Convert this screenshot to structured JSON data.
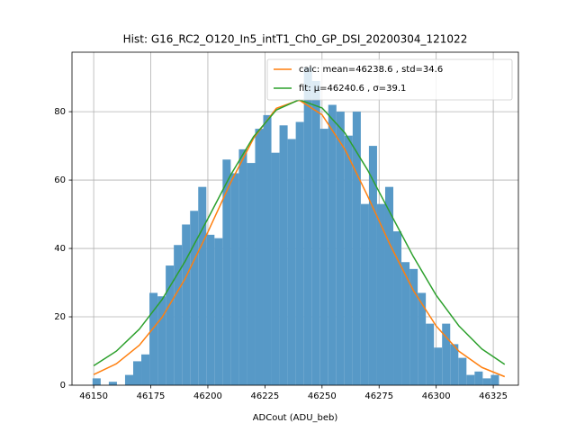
{
  "chart_data": {
    "type": "histogram",
    "title": "Hist: G16_RC2_O120_In5_intT1_Ch0_GP_DSI_20200304_121022",
    "xlabel": "ADCout (ADU_beb)",
    "color": "#5799c7",
    "bins": [
      46149.5,
      46153.06,
      46156.62,
      46160.18,
      46163.74,
      46167.3,
      46170.86,
      46174.42,
      46177.98,
      46181.54,
      46185.1,
      46188.66,
      46192.22,
      46195.78,
      46199.34,
      46202.9,
      46206.46,
      46210.02,
      46213.58,
      46217.14,
      46220.7,
      46224.26,
      46227.82,
      46231.38,
      46234.94,
      46238.5,
      46242.06,
      46245.62,
      46249.18,
      46252.74,
      46256.3,
      46259.86,
      46263.42,
      46266.98,
      46270.54,
      46274.1,
      46277.66,
      46281.22,
      46284.78,
      46288.34,
      46291.9,
      46295.46,
      46299.02,
      46302.58,
      46306.14,
      46309.7,
      46313.26,
      46316.82,
      46320.38,
      46323.94,
      46327.5
    ],
    "counts": [
      2,
      0,
      1,
      0,
      3,
      7,
      9,
      27,
      26,
      35,
      41,
      47,
      51,
      58,
      44,
      43,
      66,
      62,
      69,
      65,
      75,
      79,
      68,
      76,
      72,
      77,
      93,
      89,
      75,
      82,
      80,
      73,
      80,
      53,
      70,
      53,
      58,
      45,
      36,
      34,
      27,
      18,
      11,
      18,
      12,
      8,
      3,
      4,
      2,
      3
    ],
    "series": [
      {
        "name": "calc: mean=46238.6 , std=34.6",
        "color": "#ff7f0e",
        "x": [
          46150,
          46160,
          46170,
          46180,
          46190,
          46200,
          46210,
          46220,
          46230,
          46240,
          46250,
          46260,
          46270,
          46280,
          46290,
          46300,
          46310,
          46320,
          46330
        ],
        "values": [
          3.1,
          6.3,
          11.7,
          19.9,
          31.1,
          44.8,
          59.3,
          72.2,
          81.0,
          83.4,
          79.1,
          69.0,
          55.3,
          40.8,
          27.7,
          17.3,
          9.9,
          5.2,
          2.5
        ]
      },
      {
        "name": "fit: μ=46240.6 , σ=39.1",
        "color": "#2ca02c",
        "x": [
          46150,
          46160,
          46170,
          46180,
          46190,
          46200,
          46210,
          46220,
          46230,
          46240,
          46250,
          46260,
          46270,
          46280,
          46290,
          46300,
          46310,
          46320,
          46330
        ],
        "values": [
          5.7,
          10.0,
          16.4,
          25.1,
          36.2,
          48.7,
          61.5,
          72.7,
          80.5,
          83.5,
          81.1,
          73.8,
          62.9,
          50.2,
          37.6,
          26.3,
          17.3,
          10.6,
          6.1
        ]
      }
    ],
    "xlim": [
      46140.5,
      46336
    ],
    "ylim": [
      0,
      97.4
    ],
    "xticks": [
      46150,
      46175,
      46200,
      46225,
      46250,
      46275,
      46300,
      46325
    ],
    "yticks": [
      0,
      20,
      40,
      60,
      80
    ],
    "grid": true,
    "legend": "upper right"
  }
}
